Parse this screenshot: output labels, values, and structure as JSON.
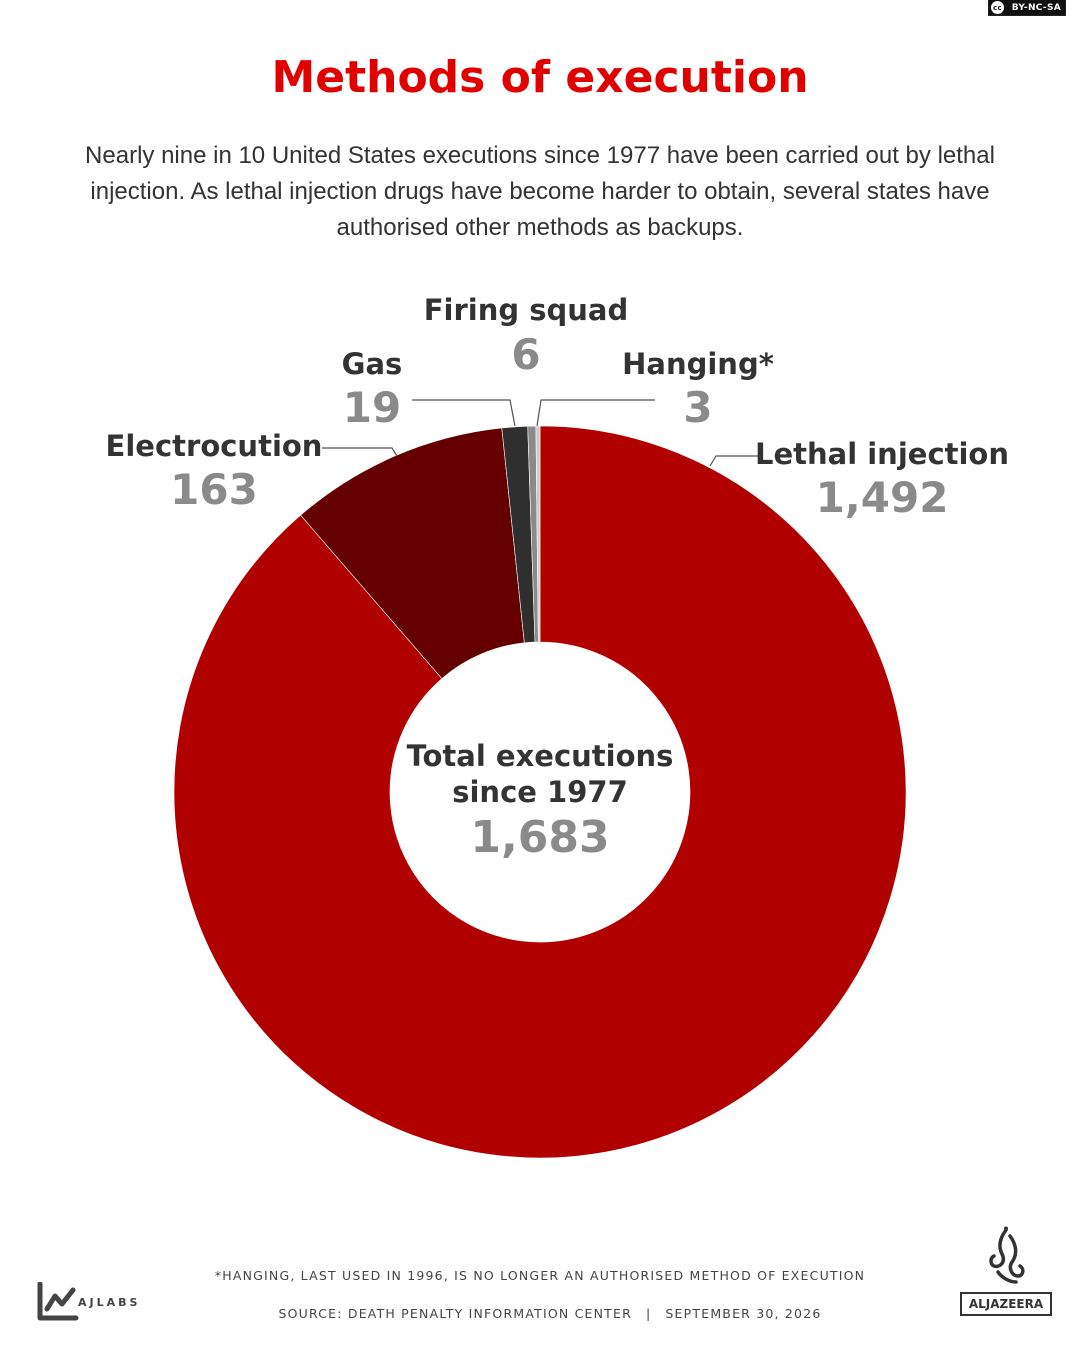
{
  "license": "BY-NC-SA",
  "header": {
    "title": "Methods of execution",
    "subtitle": "Nearly nine in 10 United States executions since 1977 have been carried out by lethal injection. As lethal injection drugs have become harder to obtain, several states have authorised other methods as backups."
  },
  "chart_data": {
    "type": "pie",
    "style": "donut",
    "center_label": [
      "Total executions",
      "since 1977"
    ],
    "center_value": "1,683",
    "total": 1683,
    "slices": [
      {
        "label": "Lethal injection",
        "value": 1492,
        "value_label": "1,492",
        "color": "#b00000"
      },
      {
        "label": "Electrocution",
        "value": 163,
        "value_label": "163",
        "color": "#650000"
      },
      {
        "label": "Gas",
        "value": 19,
        "value_label": "19",
        "color": "#2f2f2f"
      },
      {
        "label": "Firing squad",
        "value": 6,
        "value_label": "6",
        "color": "#8a8a8a"
      },
      {
        "label": "Hanging*",
        "value": 3,
        "value_label": "3",
        "color": "#cccccc"
      }
    ]
  },
  "footer": {
    "footnote": "*HANGING, LAST USED IN 1996, IS NO LONGER AN AUTHORISED METHOD OF EXECUTION",
    "source": "SOURCE: DEATH PENALTY INFORMATION CENTER",
    "date": "SEPTEMBER 30, 2026",
    "separator": "|",
    "ajlabs_logo_text": "AJLABS",
    "aljazeera_logo_text": "ALJAZEERA"
  }
}
